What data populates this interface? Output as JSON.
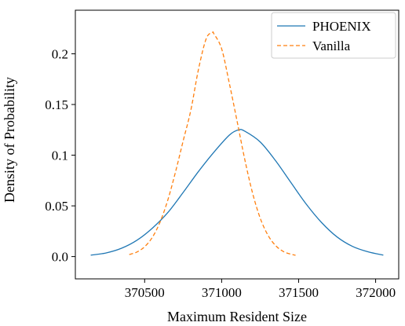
{
  "chart_data": {
    "type": "line",
    "title": "",
    "xlabel": "Maximum Resident Size",
    "ylabel": "Density of Probability",
    "xlim": [
      370050,
      372150
    ],
    "ylim": [
      -0.022,
      0.243
    ],
    "x_ticks": [
      370500,
      371000,
      371500,
      372000
    ],
    "x_tick_labels": [
      "370500",
      "371000",
      "371500",
      "372000"
    ],
    "y_ticks": [
      0.0,
      0.05,
      0.1,
      0.15,
      0.2
    ],
    "y_tick_labels": [
      "0.0",
      "0.05",
      "0.1",
      "0.15",
      "0.2"
    ],
    "grid": false,
    "legend_position": "top-right",
    "series": [
      {
        "name": "PHOENIX",
        "color": "#1f77b4",
        "line_style": "solid",
        "x": [
          370150,
          370250,
          370350,
          370450,
          370550,
          370650,
          370750,
          370850,
          370950,
          371050,
          371110,
          371150,
          371250,
          371350,
          371450,
          371550,
          371650,
          371750,
          371850,
          371950,
          372050
        ],
        "y": [
          0.0014,
          0.0036,
          0.0082,
          0.0161,
          0.028,
          0.0433,
          0.0632,
          0.084,
          0.103,
          0.1198,
          0.125,
          0.1237,
          0.1131,
          0.0946,
          0.073,
          0.0516,
          0.0334,
          0.0193,
          0.01,
          0.0047,
          0.0014
        ]
      },
      {
        "name": "Vanilla",
        "color": "#ff7f0e",
        "line_style": "dashed",
        "x": [
          370400,
          370450,
          370500,
          370550,
          370600,
          370650,
          370700,
          370750,
          370800,
          370850,
          370900,
          370940,
          370950,
          371000,
          371050,
          371100,
          371150,
          371200,
          371250,
          371300,
          371350,
          371400,
          371450,
          371480
        ],
        "y": [
          0.002,
          0.0045,
          0.0097,
          0.019,
          0.034,
          0.0555,
          0.0832,
          0.114,
          0.1444,
          0.185,
          0.215,
          0.221,
          0.2197,
          0.205,
          0.1709,
          0.1338,
          0.096,
          0.0631,
          0.0381,
          0.0213,
          0.0109,
          0.0051,
          0.0023,
          0.0013
        ]
      }
    ]
  }
}
